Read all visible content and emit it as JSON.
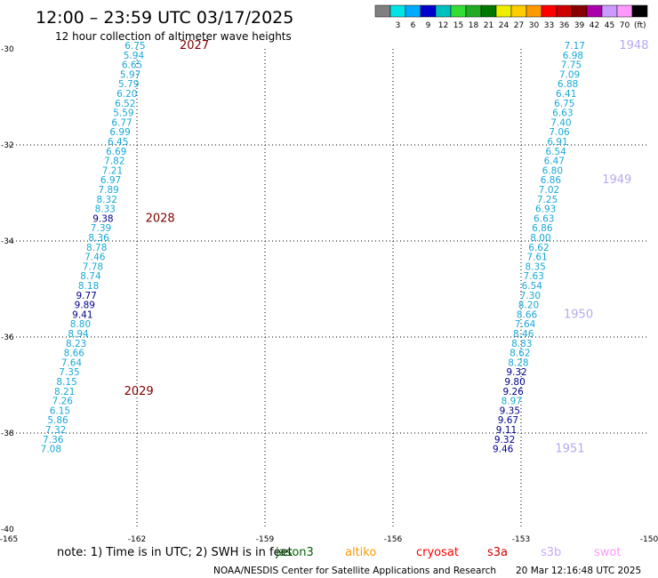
{
  "chart_data": {
    "type": "scatter",
    "title": "12:00 – 23:59 UTC 03/17/2025",
    "subtitle": "12 hour collection of altimeter wave heights",
    "xlim": [
      -165,
      -150
    ],
    "ylim": [
      -40,
      -30
    ],
    "x_ticks": [
      "-165",
      "-162",
      "-159",
      "-156",
      "-153",
      "-150"
    ],
    "y_ticks": [
      "-30",
      "-32",
      "-34",
      "-36",
      "-38",
      "-40"
    ],
    "grid": true,
    "colorbar": {
      "colors": [
        "#808080",
        "#00e5e5",
        "#00aaff",
        "#0000cc",
        "#00bfbf",
        "#33dd33",
        "#22aa22",
        "#007700",
        "#eeee00",
        "#ffcc00",
        "#ff9900",
        "#ff0000",
        "#cc0000",
        "#880000",
        "#aa00aa",
        "#cc99ff",
        "#ff99ff",
        "#000000"
      ],
      "labels": [
        "3",
        "6",
        "9",
        "12",
        "15",
        "18",
        "21",
        "24",
        "27",
        "30",
        "33",
        "36",
        "39",
        "42",
        "45",
        "70"
      ],
      "unit": "(ft)"
    },
    "tracks": [
      {
        "points": [
          {
            "lon": -161.8,
            "lat": -30.0,
            "v": "6.75"
          },
          {
            "lon": -161.83,
            "lat": -30.2,
            "v": "5.94"
          },
          {
            "lon": -161.87,
            "lat": -30.4,
            "v": "6.65"
          },
          {
            "lon": -161.91,
            "lat": -30.6,
            "v": "5.97"
          },
          {
            "lon": -161.95,
            "lat": -30.8,
            "v": "5.79"
          },
          {
            "lon": -161.99,
            "lat": -31.0,
            "v": "6.20"
          },
          {
            "lon": -162.03,
            "lat": -31.2,
            "v": "6.52"
          },
          {
            "lon": -162.07,
            "lat": -31.4,
            "v": "5.59"
          },
          {
            "lon": -162.11,
            "lat": -31.6,
            "v": "6.77"
          },
          {
            "lon": -162.15,
            "lat": -31.8,
            "v": "6.99"
          },
          {
            "lon": -162.2,
            "lat": -32.0,
            "v": "6.45"
          },
          {
            "lon": -162.24,
            "lat": -32.2,
            "v": "6.69"
          },
          {
            "lon": -162.28,
            "lat": -32.4,
            "v": "7.82"
          },
          {
            "lon": -162.33,
            "lat": -32.6,
            "v": "7.21"
          },
          {
            "lon": -162.37,
            "lat": -32.8,
            "v": "6.97"
          },
          {
            "lon": -162.42,
            "lat": -33.0,
            "v": "7.89"
          },
          {
            "lon": -162.46,
            "lat": -33.2,
            "v": "8.32"
          },
          {
            "lon": -162.5,
            "lat": -33.4,
            "v": "8.33"
          },
          {
            "lon": -162.55,
            "lat": -33.6,
            "v": "9.38"
          },
          {
            "lon": -162.6,
            "lat": -33.8,
            "v": "7.39"
          },
          {
            "lon": -162.65,
            "lat": -34.0,
            "v": "8.36"
          },
          {
            "lon": -162.7,
            "lat": -34.2,
            "v": "8.78"
          },
          {
            "lon": -162.74,
            "lat": -34.4,
            "v": "7.46"
          },
          {
            "lon": -162.79,
            "lat": -34.6,
            "v": "7.78"
          },
          {
            "lon": -162.84,
            "lat": -34.8,
            "v": "8.74"
          },
          {
            "lon": -162.89,
            "lat": -35.0,
            "v": "8.18"
          },
          {
            "lon": -162.94,
            "lat": -35.2,
            "v": "9.77"
          },
          {
            "lon": -162.98,
            "lat": -35.4,
            "v": "9.89"
          },
          {
            "lon": -163.03,
            "lat": -35.6,
            "v": "9.41"
          },
          {
            "lon": -163.08,
            "lat": -35.8,
            "v": "8.80"
          },
          {
            "lon": -163.13,
            "lat": -36.0,
            "v": "8.94"
          },
          {
            "lon": -163.18,
            "lat": -36.2,
            "v": "8.23"
          },
          {
            "lon": -163.23,
            "lat": -36.4,
            "v": "8.66"
          },
          {
            "lon": -163.29,
            "lat": -36.6,
            "v": "7.64"
          },
          {
            "lon": -163.34,
            "lat": -36.8,
            "v": "7.35"
          },
          {
            "lon": -163.4,
            "lat": -37.0,
            "v": "8.15"
          },
          {
            "lon": -163.45,
            "lat": -37.2,
            "v": "8.21"
          },
          {
            "lon": -163.5,
            "lat": -37.4,
            "v": "7.26"
          },
          {
            "lon": -163.56,
            "lat": -37.6,
            "v": "6.15"
          },
          {
            "lon": -163.61,
            "lat": -37.8,
            "v": "5.86"
          },
          {
            "lon": -163.66,
            "lat": -38.0,
            "v": "7.32"
          },
          {
            "lon": -163.72,
            "lat": -38.2,
            "v": "7.36"
          },
          {
            "lon": -163.77,
            "lat": -38.4,
            "v": "7.08"
          }
        ],
        "labels": [
          {
            "lon": -161.0,
            "lat": -30.0,
            "text": "2027"
          },
          {
            "lon": -161.8,
            "lat": -33.6,
            "text": "2028"
          },
          {
            "lon": -162.3,
            "lat": -37.2,
            "text": "2029"
          }
        ]
      },
      {
        "points": [
          {
            "lon": -151.5,
            "lat": -30.0,
            "v": "7.17"
          },
          {
            "lon": -151.54,
            "lat": -30.2,
            "v": "6.98"
          },
          {
            "lon": -151.58,
            "lat": -30.4,
            "v": "7.75"
          },
          {
            "lon": -151.62,
            "lat": -30.6,
            "v": "7.09"
          },
          {
            "lon": -151.66,
            "lat": -30.8,
            "v": "6.88"
          },
          {
            "lon": -151.7,
            "lat": -31.0,
            "v": "6.41"
          },
          {
            "lon": -151.74,
            "lat": -31.2,
            "v": "6.75"
          },
          {
            "lon": -151.78,
            "lat": -31.4,
            "v": "6.63"
          },
          {
            "lon": -151.82,
            "lat": -31.6,
            "v": "7.40"
          },
          {
            "lon": -151.86,
            "lat": -31.8,
            "v": "7.06"
          },
          {
            "lon": -151.9,
            "lat": -32.0,
            "v": "6.91"
          },
          {
            "lon": -151.94,
            "lat": -32.2,
            "v": "6.54"
          },
          {
            "lon": -151.98,
            "lat": -32.4,
            "v": "6.47"
          },
          {
            "lon": -152.02,
            "lat": -32.6,
            "v": "6.80"
          },
          {
            "lon": -152.06,
            "lat": -32.8,
            "v": "6.86"
          },
          {
            "lon": -152.1,
            "lat": -33.0,
            "v": "7.02"
          },
          {
            "lon": -152.14,
            "lat": -33.2,
            "v": "7.25"
          },
          {
            "lon": -152.18,
            "lat": -33.4,
            "v": "6.93"
          },
          {
            "lon": -152.22,
            "lat": -33.6,
            "v": "6.63"
          },
          {
            "lon": -152.26,
            "lat": -33.8,
            "v": "6.86"
          },
          {
            "lon": -152.3,
            "lat": -34.0,
            "v": "8.00"
          },
          {
            "lon": -152.34,
            "lat": -34.2,
            "v": "6.62"
          },
          {
            "lon": -152.38,
            "lat": -34.4,
            "v": "7.61"
          },
          {
            "lon": -152.42,
            "lat": -34.6,
            "v": "8.35"
          },
          {
            "lon": -152.46,
            "lat": -34.8,
            "v": "7.63"
          },
          {
            "lon": -152.5,
            "lat": -35.0,
            "v": "6.54"
          },
          {
            "lon": -152.54,
            "lat": -35.2,
            "v": "7.30"
          },
          {
            "lon": -152.58,
            "lat": -35.4,
            "v": "8.20"
          },
          {
            "lon": -152.62,
            "lat": -35.6,
            "v": "8.66"
          },
          {
            "lon": -152.66,
            "lat": -35.8,
            "v": "7.64"
          },
          {
            "lon": -152.7,
            "lat": -36.0,
            "v": "8.46"
          },
          {
            "lon": -152.74,
            "lat": -36.2,
            "v": "8.83"
          },
          {
            "lon": -152.78,
            "lat": -36.4,
            "v": "8.62"
          },
          {
            "lon": -152.82,
            "lat": -36.6,
            "v": "8.28"
          },
          {
            "lon": -152.86,
            "lat": -36.8,
            "v": "9.32"
          },
          {
            "lon": -152.9,
            "lat": -37.0,
            "v": "9.80"
          },
          {
            "lon": -152.94,
            "lat": -37.2,
            "v": "9.26"
          },
          {
            "lon": -152.98,
            "lat": -37.4,
            "v": "8.97"
          },
          {
            "lon": -153.02,
            "lat": -37.6,
            "v": "9.35"
          },
          {
            "lon": -153.06,
            "lat": -37.8,
            "v": "9.67"
          },
          {
            "lon": -153.1,
            "lat": -38.0,
            "v": "9.11"
          },
          {
            "lon": -153.14,
            "lat": -38.2,
            "v": "9.32"
          },
          {
            "lon": -153.18,
            "lat": -38.4,
            "v": "9.46"
          }
        ],
        "labels": [
          {
            "lon": -150.7,
            "lat": -30.0,
            "text": "1948"
          },
          {
            "lon": -151.1,
            "lat": -32.8,
            "text": "1949"
          },
          {
            "lon": -152.0,
            "lat": -35.6,
            "text": "1950"
          },
          {
            "lon": -152.2,
            "lat": -38.4,
            "text": "1951"
          }
        ]
      }
    ]
  },
  "note": "note:  1) Time is in UTC; 2) SWH is in feet",
  "satellites": [
    {
      "name": "jason3",
      "color": "#006400"
    },
    {
      "name": "altiko",
      "color": "#ff9900"
    },
    {
      "name": "cryosat",
      "color": "#ff0000"
    },
    {
      "name": "s3a",
      "color": "#cc0000"
    },
    {
      "name": "s3b",
      "color": "#c8a8ff"
    },
    {
      "name": "swot",
      "color": "#ff99ff"
    }
  ],
  "footer_left": "NOAA/NESDIS Center for Satellite Applications and Research",
  "footer_right": "20 Mar 12:16:48 UTC 2025",
  "colors": {
    "label_deep": "#800000",
    "label_light": "#b8a8ee"
  }
}
